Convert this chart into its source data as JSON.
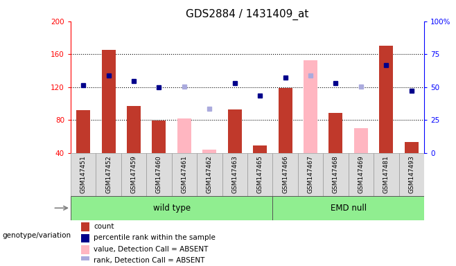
{
  "title": "GDS2884 / 1431409_at",
  "samples": [
    "GSM147451",
    "GSM147452",
    "GSM147459",
    "GSM147460",
    "GSM147461",
    "GSM147462",
    "GSM147463",
    "GSM147465",
    "GSM147466",
    "GSM147467",
    "GSM147468",
    "GSM147469",
    "GSM147481",
    "GSM147493"
  ],
  "wt_samples": [
    "GSM147451",
    "GSM147452",
    "GSM147459",
    "GSM147460",
    "GSM147461",
    "GSM147462",
    "GSM147463",
    "GSM147465"
  ],
  "emd_samples": [
    "GSM147466",
    "GSM147467",
    "GSM147468",
    "GSM147469",
    "GSM147481",
    "GSM147493"
  ],
  "count": {
    "GSM147451": 92,
    "GSM147452": 165,
    "GSM147459": 97,
    "GSM147460": 79,
    "GSM147461": null,
    "GSM147462": null,
    "GSM147463": 93,
    "GSM147465": 49,
    "GSM147466": 119,
    "GSM147467": null,
    "GSM147468": 89,
    "GSM147469": null,
    "GSM147481": 170,
    "GSM147493": 53
  },
  "absent_value": {
    "GSM147461": 82,
    "GSM147462": 44,
    "GSM147467": 153,
    "GSM147469": 70
  },
  "percentile_rank": {
    "GSM147451": 122,
    "GSM147452": 134,
    "GSM147459": 127,
    "GSM147460": 120,
    "GSM147463": 125,
    "GSM147465": 110,
    "GSM147466": 132,
    "GSM147468": 125,
    "GSM147481": 147,
    "GSM147493": 116
  },
  "absent_rank": {
    "GSM147461": 121,
    "GSM147462": 94,
    "GSM147467": 134,
    "GSM147469": 121
  },
  "ylim_left": [
    40,
    200
  ],
  "yticks_left": [
    40,
    80,
    120,
    160,
    200
  ],
  "yticks_right": [
    0,
    25,
    50,
    75,
    100
  ],
  "bar_color_present": "#C0392B",
  "bar_color_absent": "#FFB6C1",
  "dot_color_present": "#00008B",
  "dot_color_absent": "#AAAADD",
  "group_color": "#90EE90",
  "sample_bg_color": "#DCDCDC",
  "title_fontsize": 11,
  "tick_fontsize": 7.5,
  "genotype_label": "genotype/variation",
  "wt_label": "wild type",
  "emd_label": "EMD null",
  "legend_items": [
    {
      "color": "#C0392B",
      "label": "count",
      "type": "rect"
    },
    {
      "color": "#00008B",
      "label": "percentile rank within the sample",
      "type": "rect"
    },
    {
      "color": "#FFB6C1",
      "label": "value, Detection Call = ABSENT",
      "type": "rect"
    },
    {
      "color": "#AAAADD",
      "label": "rank, Detection Call = ABSENT",
      "type": "rect"
    }
  ]
}
